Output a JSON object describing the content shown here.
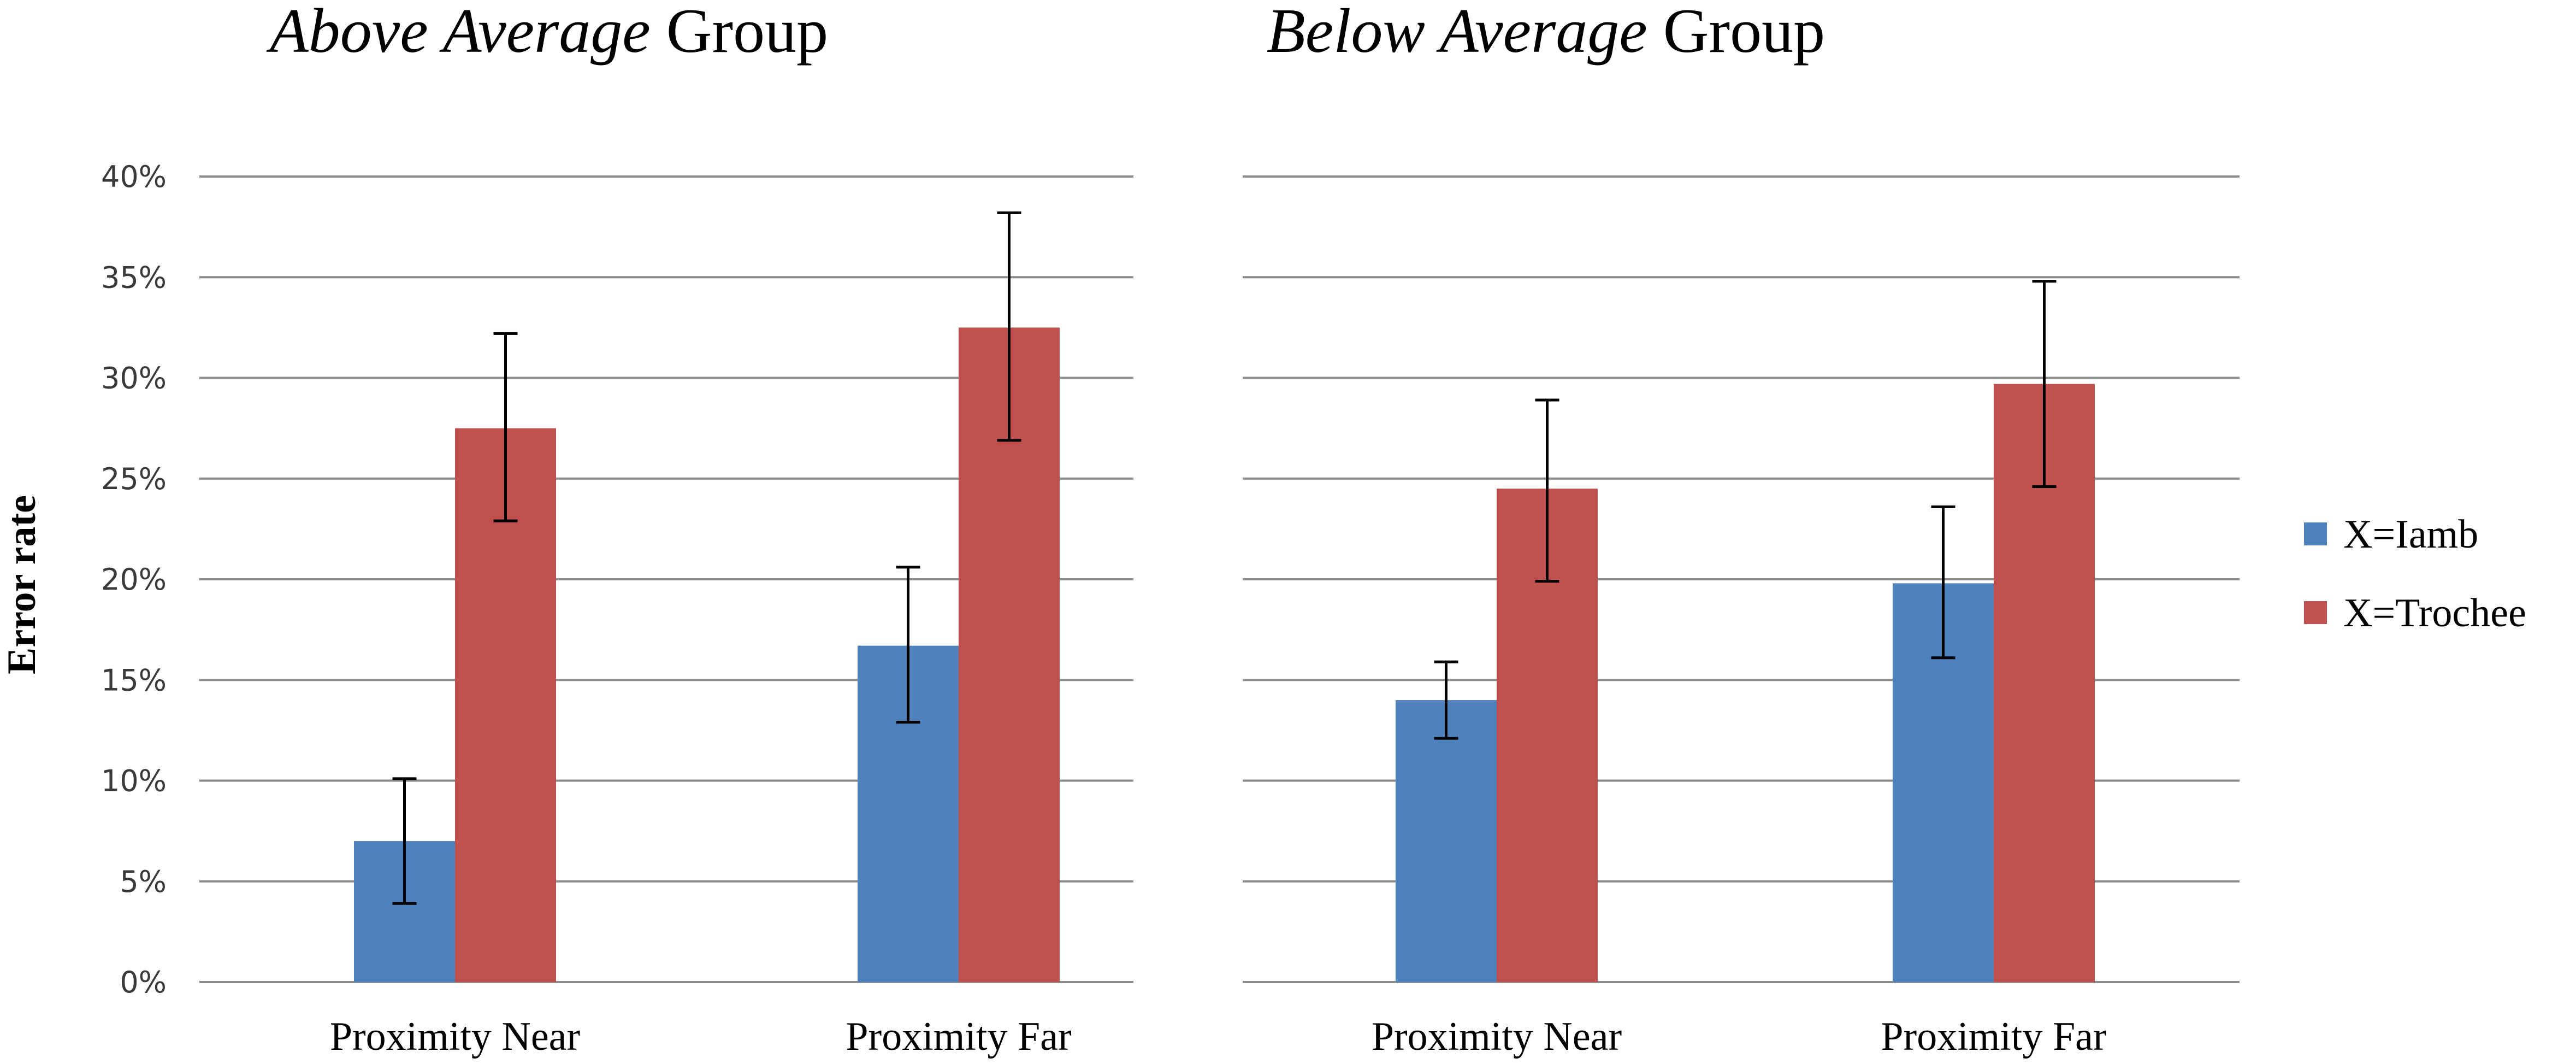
{
  "y_axis_label": "Error rate",
  "legend": [
    {
      "label": "X=Iamb",
      "color": "#4f81bd"
    },
    {
      "label": "X=Trochee",
      "color": "#c0504d"
    }
  ],
  "colors": {
    "iamb": "#4f81bd",
    "trochee": "#c0504d",
    "grid": "#8c8c8c",
    "error_bar": "#000000"
  },
  "chart_data": [
    {
      "type": "bar",
      "title_italic": "Above Average",
      "title_rest": " Group",
      "ylabel": "Error rate",
      "categories": [
        "Proximity Near",
        "Proximity Far"
      ],
      "ylim": [
        0,
        40
      ],
      "yticks": [
        0,
        5,
        10,
        15,
        20,
        25,
        30,
        35,
        40
      ],
      "ytick_labels": [
        "0%",
        "5%",
        "10%",
        "15%",
        "20%",
        "25%",
        "30%",
        "35%",
        "40%"
      ],
      "grid": true,
      "series": [
        {
          "name": "X=Iamb",
          "values": [
            7.0,
            16.7
          ],
          "error_low": [
            3.9,
            12.9
          ],
          "error_high": [
            10.1,
            20.6
          ]
        },
        {
          "name": "X=Trochee",
          "values": [
            27.5,
            32.5
          ],
          "error_low": [
            22.9,
            26.9
          ],
          "error_high": [
            32.2,
            38.2
          ]
        }
      ]
    },
    {
      "type": "bar",
      "title_italic": "Below Average",
      "title_rest": " Group",
      "ylabel": "",
      "categories": [
        "Proximity Near",
        "Proximity Far"
      ],
      "ylim": [
        0,
        40
      ],
      "yticks": [
        0,
        5,
        10,
        15,
        20,
        25,
        30,
        35,
        40
      ],
      "ytick_labels": [],
      "grid": true,
      "series": [
        {
          "name": "X=Iamb",
          "values": [
            14.0,
            19.8
          ],
          "error_low": [
            12.1,
            16.1
          ],
          "error_high": [
            15.9,
            23.6
          ]
        },
        {
          "name": "X=Trochee",
          "values": [
            24.5,
            29.7
          ],
          "error_low": [
            19.9,
            24.6
          ],
          "error_high": [
            28.9,
            34.8
          ]
        }
      ]
    }
  ]
}
